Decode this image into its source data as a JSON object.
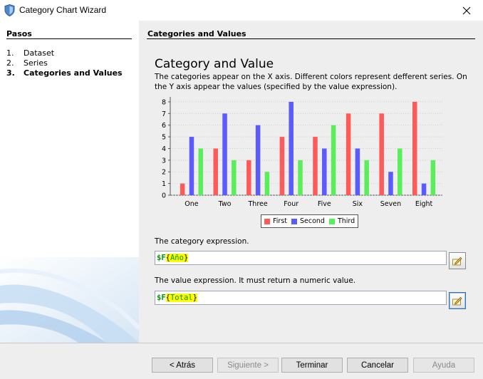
{
  "window": {
    "title": "Category Chart Wizard",
    "app_icon": "document-shield-icon",
    "close_icon": "close-icon"
  },
  "steps": {
    "title": "Pasos",
    "items": [
      {
        "num": "1.",
        "label": "Dataset",
        "current": false
      },
      {
        "num": "2.",
        "label": "Series",
        "current": false
      },
      {
        "num": "3.",
        "label": "Categories and Values",
        "current": true
      }
    ]
  },
  "content": {
    "panel_title": "Categories and Values",
    "heading": "Category and Value",
    "description": "The categories appear on the X axis. Different colors represent defferent series. On the Y axis appear the values (specified by the value expression).",
    "category_label": "The category expression.",
    "category_expr": {
      "fn": "$F",
      "open": "{",
      "param": "Año",
      "close": "}"
    },
    "value_label": "The value expression. It must return a numeric value.",
    "value_expr": {
      "fn": "$F",
      "open": "{",
      "param": "Total",
      "close": "}"
    },
    "edit_icon": "pencil-edit-icon"
  },
  "chart_data": {
    "type": "bar",
    "categories": [
      "One",
      "Two",
      "Three",
      "Four",
      "Five",
      "Six",
      "Seven",
      "Eight"
    ],
    "series": [
      {
        "name": "First",
        "color": "#ff5a5a",
        "values": [
          1,
          4,
          3,
          5,
          5,
          7,
          7,
          8
        ]
      },
      {
        "name": "Second",
        "color": "#5a5aff",
        "values": [
          5,
          7,
          6,
          8,
          4,
          4,
          2,
          1
        ]
      },
      {
        "name": "Third",
        "color": "#5aef5a",
        "values": [
          4,
          3,
          2,
          3,
          6,
          3,
          4,
          3
        ]
      }
    ],
    "yticks": [
      "0",
      "1",
      "2",
      "3",
      "4",
      "5",
      "6",
      "7",
      "8"
    ],
    "ylim": [
      0,
      8.3
    ],
    "grid": true,
    "legend": "bottom"
  },
  "buttons": {
    "back": "< Atrás",
    "next": "Siguiente >",
    "finish": "Terminar",
    "cancel": "Cancelar",
    "help": "Ayuda"
  }
}
